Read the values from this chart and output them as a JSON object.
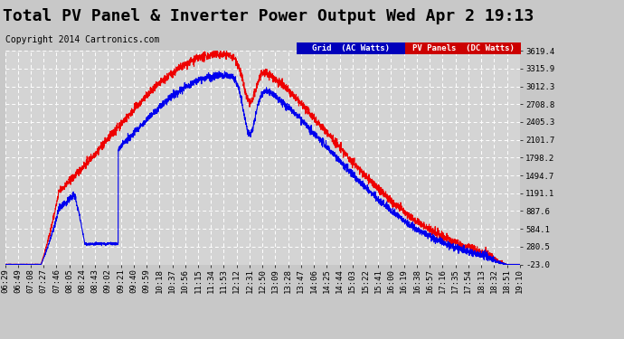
{
  "title": "Total PV Panel & Inverter Power Output Wed Apr 2 19:13",
  "copyright": "Copyright 2014 Cartronics.com",
  "background_color": "#c8c8c8",
  "plot_bg_color": "#d4d4d4",
  "grid_color": "#ffffff",
  "legend_grid_label": "Grid  (AC Watts)",
  "legend_pv_label": "PV Panels  (DC Watts)",
  "legend_grid_color": "#0000bb",
  "legend_pv_color": "#cc0000",
  "line_grid_color": "#0000ee",
  "line_pv_color": "#ee0000",
  "y_ticks": [
    -23.0,
    280.5,
    584.1,
    887.6,
    1191.1,
    1494.7,
    1798.2,
    2101.7,
    2405.3,
    2708.8,
    3012.3,
    3315.9,
    3619.4
  ],
  "x_labels": [
    "06:29",
    "06:49",
    "07:08",
    "07:27",
    "07:46",
    "08:05",
    "08:24",
    "08:43",
    "09:02",
    "09:21",
    "09:40",
    "09:59",
    "10:18",
    "10:37",
    "10:56",
    "11:15",
    "11:34",
    "11:53",
    "12:12",
    "12:31",
    "12:50",
    "13:09",
    "13:28",
    "13:47",
    "14:06",
    "14:25",
    "14:44",
    "15:03",
    "15:22",
    "15:41",
    "16:00",
    "16:19",
    "16:38",
    "16:57",
    "17:16",
    "17:35",
    "17:54",
    "18:13",
    "18:32",
    "18:51",
    "19:10"
  ],
  "ylim": [
    -23.0,
    3619.4
  ],
  "title_fontsize": 13,
  "copyright_fontsize": 7,
  "tick_fontsize": 6.5
}
